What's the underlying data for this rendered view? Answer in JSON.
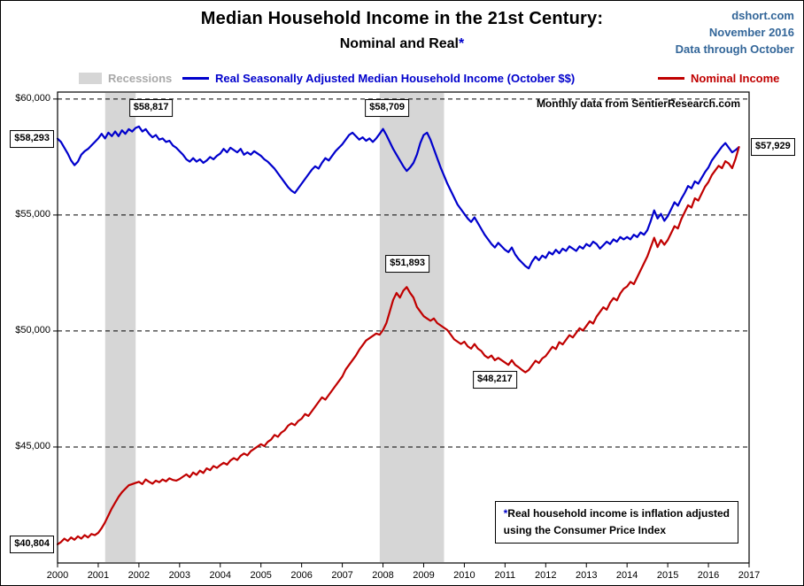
{
  "header": {
    "site": "dshort.com",
    "date": "November 2016",
    "through": "Data through October"
  },
  "legend": {
    "recessions_label": "Recessions",
    "real_label": "Real Seasonally Adjusted Median Household Income (October $$)",
    "nominal_label": "Nominal Income"
  },
  "colors": {
    "real": "#0000CC",
    "nominal": "#C00000",
    "recession_band": "#D6D6D6",
    "recessions_label": "#A9A9A9",
    "header_text": "#336699"
  },
  "chart_data": {
    "type": "line",
    "title": "Median Household Income in the 21st Century:",
    "subtitle": "Nominal and Real",
    "subtitle_asterisk": "*",
    "note": "Monthly data from SentierResearch.com",
    "footnote": {
      "asterisk": "*",
      "line1": "Real household income is inflation adjusted",
      "line2": "using the Consumer Price Index"
    },
    "frequency": "monthly",
    "x_start_year": 2000,
    "x_ticks": [
      2000,
      2001,
      2002,
      2003,
      2004,
      2005,
      2006,
      2007,
      2008,
      2009,
      2010,
      2011,
      2012,
      2013,
      2014,
      2015,
      2016,
      2017
    ],
    "ylim": [
      40000,
      60300
    ],
    "y_ticks": [
      {
        "value": 60000,
        "label": "$60,000"
      },
      {
        "value": 55000,
        "label": "$55,000"
      },
      {
        "value": 50000,
        "label": "$50,000"
      },
      {
        "value": 45000,
        "label": "$45,000"
      }
    ],
    "recessions": [
      {
        "start": 2001.17,
        "end": 2001.92
      },
      {
        "start": 2007.92,
        "end": 2009.5
      }
    ],
    "series": [
      {
        "name": "Real Seasonally Adjusted Median Household Income (October $$)",
        "color": "#0000CC",
        "start": "2000-01",
        "end": "2016-10",
        "values": [
          58293,
          58150,
          57900,
          57650,
          57350,
          57150,
          57300,
          57600,
          57750,
          57850,
          58000,
          58150,
          58300,
          58500,
          58300,
          58550,
          58400,
          58600,
          58400,
          58650,
          58500,
          58700,
          58600,
          58750,
          58817,
          58600,
          58700,
          58500,
          58350,
          58450,
          58250,
          58300,
          58150,
          58200,
          58000,
          57900,
          57750,
          57600,
          57400,
          57300,
          57450,
          57300,
          57400,
          57250,
          57350,
          57500,
          57400,
          57550,
          57650,
          57850,
          57700,
          57900,
          57800,
          57700,
          57850,
          57600,
          57700,
          57600,
          57750,
          57650,
          57550,
          57400,
          57300,
          57150,
          57000,
          56800,
          56600,
          56400,
          56200,
          56050,
          55950,
          56150,
          56350,
          56550,
          56750,
          56950,
          57100,
          57000,
          57250,
          57450,
          57350,
          57550,
          57750,
          57900,
          58050,
          58250,
          58450,
          58550,
          58400,
          58250,
          58350,
          58200,
          58300,
          58150,
          58300,
          58500,
          58709,
          58450,
          58150,
          57850,
          57600,
          57350,
          57100,
          56900,
          57050,
          57250,
          57600,
          58100,
          58450,
          58550,
          58250,
          57850,
          57450,
          57050,
          56700,
          56350,
          56050,
          55750,
          55450,
          55250,
          55050,
          54850,
          54700,
          54900,
          54650,
          54400,
          54150,
          53950,
          53750,
          53600,
          53800,
          53650,
          53500,
          53400,
          53600,
          53300,
          53100,
          52950,
          52800,
          52700,
          53000,
          53200,
          53050,
          53250,
          53150,
          53400,
          53300,
          53500,
          53350,
          53550,
          53450,
          53650,
          53550,
          53450,
          53650,
          53550,
          53750,
          53650,
          53850,
          53750,
          53550,
          53700,
          53850,
          53750,
          53950,
          53850,
          54050,
          53950,
          54050,
          53950,
          54150,
          54050,
          54250,
          54150,
          54350,
          54750,
          55200,
          54850,
          55050,
          54750,
          54950,
          55250,
          55550,
          55400,
          55700,
          55950,
          56250,
          56150,
          56450,
          56350,
          56600,
          56850,
          57050,
          57350,
          57550,
          57750,
          57950,
          58100,
          57900,
          57700,
          57800,
          57929
        ]
      },
      {
        "name": "Nominal Income",
        "color": "#C00000",
        "start": "2000-01",
        "end": "2016-10",
        "values": [
          40804,
          40900,
          41050,
          40950,
          41100,
          41000,
          41150,
          41050,
          41200,
          41100,
          41250,
          41200,
          41300,
          41500,
          41750,
          42050,
          42350,
          42600,
          42850,
          43050,
          43200,
          43350,
          43400,
          43450,
          43500,
          43400,
          43600,
          43500,
          43420,
          43550,
          43480,
          43600,
          43520,
          43650,
          43580,
          43550,
          43620,
          43720,
          43820,
          43700,
          43900,
          43800,
          43980,
          43880,
          44080,
          44000,
          44180,
          44100,
          44220,
          44320,
          44240,
          44420,
          44520,
          44440,
          44620,
          44720,
          44640,
          44820,
          44920,
          45020,
          45120,
          45040,
          45220,
          45320,
          45520,
          45440,
          45620,
          45720,
          45920,
          46020,
          45940,
          46120,
          46220,
          46420,
          46340,
          46540,
          46740,
          46940,
          47140,
          47040,
          47240,
          47440,
          47640,
          47840,
          48040,
          48340,
          48540,
          48740,
          48940,
          49190,
          49390,
          49590,
          49690,
          49790,
          49890,
          49840,
          50040,
          50340,
          50840,
          51340,
          51640,
          51440,
          51740,
          51893,
          51640,
          51440,
          51040,
          50840,
          50640,
          50540,
          50440,
          50540,
          50340,
          50240,
          50140,
          50040,
          49840,
          49640,
          49540,
          49440,
          49540,
          49340,
          49240,
          49440,
          49240,
          49140,
          48940,
          48840,
          48940,
          48740,
          48840,
          48740,
          48640,
          48540,
          48740,
          48540,
          48440,
          48320,
          48217,
          48320,
          48520,
          48720,
          48620,
          48820,
          48920,
          49120,
          49320,
          49220,
          49520,
          49420,
          49620,
          49820,
          49720,
          49920,
          50120,
          50020,
          50220,
          50420,
          50320,
          50620,
          50820,
          51020,
          50920,
          51220,
          51420,
          51320,
          51620,
          51820,
          51920,
          52120,
          52020,
          52320,
          52620,
          52920,
          53220,
          53620,
          54020,
          53620,
          53920,
          53720,
          53920,
          54220,
          54520,
          54420,
          54820,
          55120,
          55420,
          55320,
          55720,
          55620,
          55920,
          56220,
          56420,
          56720,
          56920,
          57120,
          57020,
          57320,
          57220,
          57020,
          57420,
          57929
        ]
      }
    ],
    "callouts": [
      {
        "label": "$58,293",
        "x": 2000.0,
        "y": 58293,
        "pos": "left"
      },
      {
        "label": "$40,804",
        "x": 2000.0,
        "y": 40804,
        "pos": "left"
      },
      {
        "label": "$58,817",
        "x": 2002.3,
        "y": 59600,
        "pos": "center"
      },
      {
        "label": "$58,709",
        "x": 2008.1,
        "y": 59600,
        "pos": "center"
      },
      {
        "label": "$51,893",
        "x": 2008.6,
        "y": 52900,
        "pos": "center"
      },
      {
        "label": "$48,217",
        "x": 2010.75,
        "y": 47900,
        "pos": "center"
      },
      {
        "label": "$57,929",
        "x": 2017.0,
        "y": 57929,
        "pos": "right"
      }
    ]
  }
}
